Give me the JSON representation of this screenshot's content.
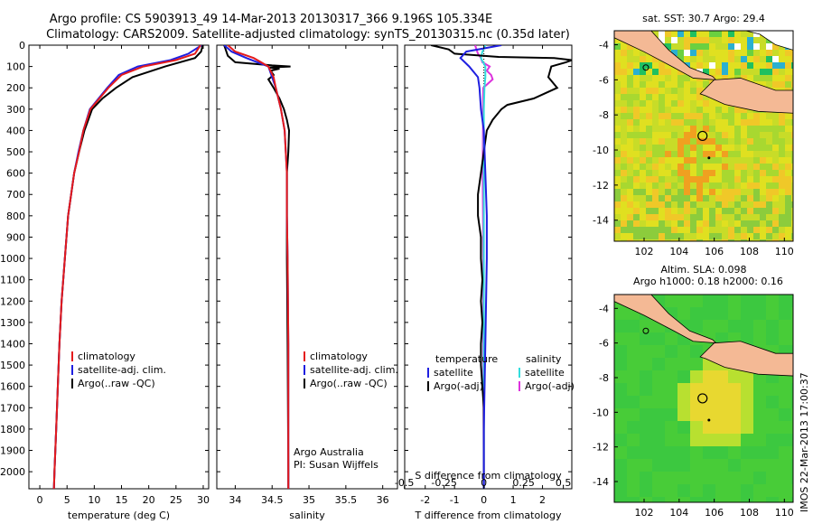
{
  "header": {
    "line1": "Argo profile: CS 5903913_49 14-Mar-2013 20130317_366 9.196S 105.334E",
    "line2": "Climatology: CARS2009. Satellite-adjusted climatology: synTS_20130315.nc (0.35d later)"
  },
  "colors": {
    "climatology": "#e41a1c",
    "satellite": "#1f1fe0",
    "argo": "#000000",
    "sat_t": "#33dddd",
    "argo_s": "#dd33dd",
    "land": "#f4b995"
  },
  "chart_data": [
    {
      "id": "temperature",
      "type": "line",
      "xlabel": "temperature (deg C)",
      "ylabel": "",
      "xlim": [
        -2,
        31
      ],
      "ylim": [
        2080,
        0
      ],
      "xticks": [
        "0",
        "5",
        "10",
        "15",
        "20",
        "25",
        "30"
      ],
      "yticks": [
        "0",
        "100",
        "200",
        "300",
        "400",
        "500",
        "600",
        "700",
        "800",
        "900",
        "1000",
        "1100",
        "1200",
        "1300",
        "1400",
        "1500",
        "1600",
        "1700",
        "1800",
        "1900",
        "2000"
      ],
      "legend": [
        "climatology",
        "satellite-adj. clim.",
        "Argo(..raw -QC)"
      ],
      "series": [
        {
          "name": "climatology",
          "depth": [
            0,
            40,
            70,
            100,
            140,
            200,
            300,
            400,
            500,
            600,
            800,
            1000,
            1200,
            1400,
            1600,
            1800,
            2000,
            2080
          ],
          "values": [
            29.5,
            28.5,
            25,
            19,
            15,
            12.6,
            9.3,
            8,
            7.2,
            6.3,
            5.2,
            4.6,
            4,
            3.6,
            3.3,
            3,
            2.7,
            2.6
          ]
        },
        {
          "name": "satellite-adj. clim.",
          "depth": [
            0,
            40,
            70,
            100,
            140,
            200,
            300,
            400,
            500,
            600,
            800,
            1000,
            1200,
            1400,
            1600,
            1800,
            2000,
            2080
          ],
          "values": [
            29.7,
            27.3,
            24,
            18,
            14.5,
            12.4,
            9.2,
            8,
            7.1,
            6.3,
            5.2,
            4.6,
            4,
            3.6,
            3.3,
            3,
            2.7,
            2.6
          ]
        },
        {
          "name": "Argo(..raw -QC)",
          "depth": [
            0,
            30,
            60,
            100,
            150,
            200,
            250,
            300,
            400,
            500,
            600,
            800,
            1000,
            1200,
            1400,
            1600,
            1800,
            2000,
            2080
          ],
          "values": [
            29.9,
            29.6,
            28.5,
            23,
            17,
            14,
            11.5,
            9.6,
            8.2,
            7.2,
            6.3,
            5.2,
            4.6,
            4,
            3.6,
            3.3,
            3,
            2.7,
            2.6
          ]
        }
      ]
    },
    {
      "id": "salinity",
      "type": "line",
      "xlabel": "salinity",
      "xlim": [
        33.75,
        36.2
      ],
      "ylim": [
        2080,
        0
      ],
      "xticks": [
        "34",
        "34.5",
        "35",
        "35.5",
        "36"
      ],
      "legend": [
        "climatology",
        "satellite-adj. clim.",
        "Argo(..raw -QC)"
      ],
      "annotation": [
        "Argo Australia",
        "PI: Susan Wijffels"
      ],
      "series": [
        {
          "name": "climatology",
          "depth": [
            0,
            30,
            60,
            80,
            100,
            150,
            200,
            300,
            400,
            600,
            800,
            1000,
            1400,
            2000,
            2080
          ],
          "values": [
            33.9,
            34.0,
            34.25,
            34.35,
            34.45,
            34.52,
            34.55,
            34.62,
            34.67,
            34.7,
            34.7,
            34.71,
            34.72,
            34.72,
            34.72
          ]
        },
        {
          "name": "satellite-adj. clim.",
          "depth": [
            0,
            30,
            60,
            80,
            100,
            150,
            200,
            300,
            400,
            600,
            800,
            1000,
            1400,
            2000,
            2080
          ],
          "values": [
            33.85,
            33.95,
            34.15,
            34.3,
            34.45,
            34.5,
            34.55,
            34.62,
            34.67,
            34.7,
            34.7,
            34.71,
            34.72,
            34.72,
            34.72
          ]
        },
        {
          "name": "Argo(..raw -QC)",
          "depth": [
            0,
            50,
            80,
            95,
            100,
            105,
            110,
            120,
            140,
            160,
            200,
            250,
            300,
            350,
            400,
            500,
            600,
            800,
            1000,
            1400,
            2000,
            2080
          ],
          "values": [
            33.85,
            33.9,
            34.0,
            34.5,
            34.75,
            34.45,
            34.6,
            34.48,
            34.52,
            34.45,
            34.52,
            34.6,
            34.66,
            34.7,
            34.73,
            34.72,
            34.7,
            34.7,
            34.7,
            34.71,
            34.72,
            34.72
          ]
        }
      ]
    },
    {
      "id": "difference",
      "type": "line",
      "xlabel": "T difference from climatology",
      "xlabel_top": "S difference from climatology",
      "xlim": [
        -2.7,
        3.0
      ],
      "ylim": [
        2080,
        0
      ],
      "xticks": [
        "-2",
        "-1",
        "0",
        "1",
        "2"
      ],
      "xticks_top": [
        "-0.5",
        "-0.25",
        "0",
        "0.25",
        "0.5"
      ],
      "legend_headers": [
        "temperature",
        "salinity"
      ],
      "legend": [
        "satellite",
        "Argo(-adj)",
        "satellite",
        "Argo(-adj)"
      ],
      "series": [
        {
          "name": "temperature satellite",
          "depth": [
            0,
            30,
            60,
            100,
            150,
            200,
            300,
            400,
            600,
            800,
            1000,
            1400,
            1800,
            2080
          ],
          "values": [
            0.6,
            -0.6,
            -0.8,
            -0.5,
            -0.2,
            -0.15,
            -0.1,
            0,
            0.05,
            0.1,
            0.1,
            0.05,
            0.0,
            0.0
          ]
        },
        {
          "name": "temperature Argo(-adj)",
          "depth": [
            0,
            20,
            40,
            55,
            60,
            70,
            80,
            100,
            150,
            200,
            250,
            280,
            300,
            350,
            400,
            500,
            600,
            700,
            800,
            900,
            1000,
            1100,
            1200,
            1300,
            1400,
            1500,
            1600,
            1700,
            1800,
            1900,
            2000,
            2080
          ],
          "values": [
            -1.8,
            -1.2,
            -1.0,
            0.5,
            2.4,
            3.0,
            2.8,
            2.3,
            2.2,
            2.5,
            1.7,
            0.8,
            0.6,
            0.3,
            0.1,
            0.0,
            -0.1,
            -0.2,
            -0.2,
            -0.1,
            -0.1,
            -0.05,
            -0.1,
            -0.05,
            -0.1,
            -0.1,
            -0.05,
            0.0,
            0.0,
            0.0,
            0.0,
            0.0
          ]
        },
        {
          "name": "salinity satellite",
          "depth": [
            0,
            30,
            60,
            100,
            150,
            200,
            300,
            400,
            600,
            1000,
            1400,
            2080
          ],
          "values": [
            0.05,
            -0.05,
            -0.1,
            0.05,
            0.05,
            0.02,
            0.0,
            0.0,
            0.0,
            0.0,
            0.0,
            0.0
          ]
        },
        {
          "name": "salinity Argo(-adj)",
          "depth": [
            0,
            20,
            40,
            60,
            80,
            100,
            120,
            140,
            160,
            200,
            300,
            400,
            600,
            800,
            1000,
            1400,
            2000,
            2080
          ],
          "values": [
            -0.3,
            -0.25,
            -0.2,
            -0.1,
            -0.05,
            0.2,
            0.1,
            0.25,
            0.3,
            -0.02,
            -0.03,
            -0.03,
            -0.04,
            -0.03,
            -0.02,
            -0.02,
            0.0,
            0.0
          ]
        }
      ]
    },
    {
      "id": "sst_map",
      "type": "heatmap",
      "title": "sat. SST: 30.7  Argo: 29.4",
      "xticks": [
        "102",
        "104",
        "106",
        "108",
        "110"
      ],
      "yticks": [
        "-4",
        "-6",
        "-8",
        "-10",
        "-12",
        "-14"
      ],
      "xlim": [
        100.3,
        110.5
      ],
      "ylim": [
        -15.2,
        -3.2
      ],
      "marker": [
        105.334,
        -9.196
      ]
    },
    {
      "id": "sla_map",
      "type": "heatmap",
      "title": "Altim. SLA: 0.098",
      "subtitle": "Argo h1000: 0.18  h2000: 0.16",
      "xticks": [
        "102",
        "104",
        "106",
        "108",
        "110"
      ],
      "yticks": [
        "-4",
        "-6",
        "-8",
        "-10",
        "-12",
        "-14"
      ],
      "xlim": [
        100.3,
        110.5
      ],
      "ylim": [
        -15.2,
        -3.2
      ],
      "marker": [
        105.334,
        -9.196
      ]
    }
  ],
  "footer": {
    "stamp": "IMOS 22-Mar-2013 17:00:37"
  }
}
